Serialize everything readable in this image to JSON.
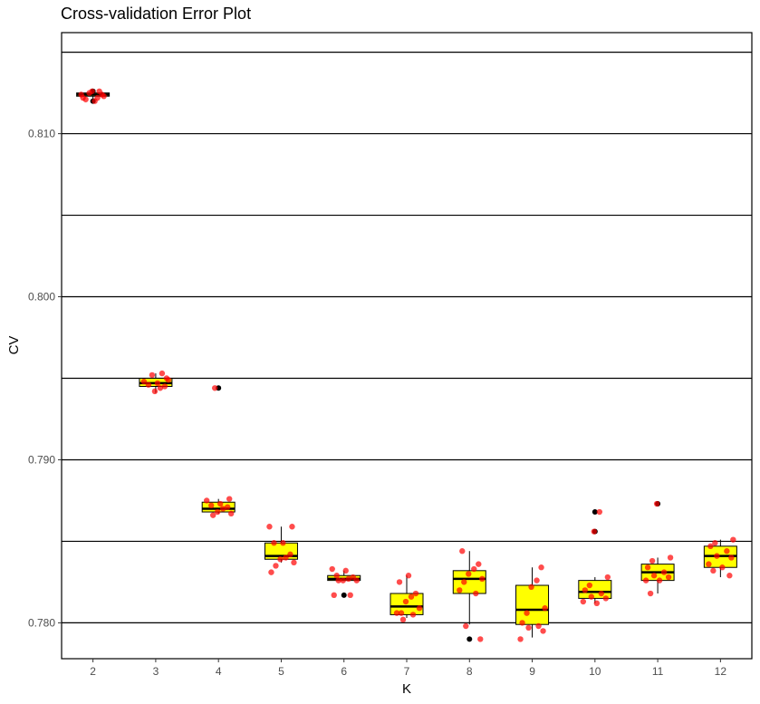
{
  "chart_data": {
    "type": "boxplot",
    "title": "Cross-validation Error Plot",
    "xlabel": "K",
    "ylabel": "CV",
    "categories": [
      "2",
      "3",
      "4",
      "5",
      "6",
      "7",
      "8",
      "9",
      "10",
      "11",
      "12"
    ],
    "ylim": [
      0.7778,
      0.8162
    ],
    "yticks": [
      0.78,
      0.79,
      0.8,
      0.81
    ],
    "ytick_labels": [
      "0.780",
      "0.790",
      "0.800",
      "0.810"
    ],
    "gridlines_y": [
      0.78,
      0.785,
      0.79,
      0.795,
      0.8,
      0.805,
      0.81,
      0.815
    ],
    "box_color": "#ffff00",
    "point_color": "#ff0000",
    "outlier_color": "#000000",
    "grid": true,
    "boxes": [
      {
        "k": "2",
        "min": 0.8121,
        "q1": 0.8123,
        "median": 0.8124,
        "q3": 0.8125,
        "max": 0.8126,
        "outliers": [
          0.8126,
          0.812
        ]
      },
      {
        "k": "3",
        "min": 0.7941,
        "q1": 0.7945,
        "median": 0.7947,
        "q3": 0.795,
        "max": 0.7953,
        "outliers": []
      },
      {
        "k": "4",
        "min": 0.7867,
        "q1": 0.7868,
        "median": 0.787,
        "q3": 0.7874,
        "max": 0.7876,
        "outliers": [
          0.7944
        ]
      },
      {
        "k": "5",
        "min": 0.7837,
        "q1": 0.7839,
        "median": 0.7841,
        "q3": 0.7849,
        "max": 0.7859,
        "outliers": []
      },
      {
        "k": "6",
        "min": 0.7826,
        "q1": 0.7826,
        "median": 0.7827,
        "q3": 0.7829,
        "max": 0.7832,
        "outliers": [
          0.7817
        ]
      },
      {
        "k": "7",
        "min": 0.7803,
        "q1": 0.7805,
        "median": 0.781,
        "q3": 0.7818,
        "max": 0.7829,
        "outliers": []
      },
      {
        "k": "8",
        "min": 0.7799,
        "q1": 0.7818,
        "median": 0.7827,
        "q3": 0.7832,
        "max": 0.7844,
        "outliers": [
          0.779
        ]
      },
      {
        "k": "9",
        "min": 0.7791,
        "q1": 0.7799,
        "median": 0.7808,
        "q3": 0.7823,
        "max": 0.7834,
        "outliers": []
      },
      {
        "k": "10",
        "min": 0.7812,
        "q1": 0.7815,
        "median": 0.7819,
        "q3": 0.7826,
        "max": 0.7828,
        "outliers": [
          0.7868,
          0.7856
        ]
      },
      {
        "k": "11",
        "min": 0.7818,
        "q1": 0.7826,
        "median": 0.7831,
        "q3": 0.7836,
        "max": 0.784,
        "outliers": [
          0.7873
        ]
      },
      {
        "k": "12",
        "min": 0.7828,
        "q1": 0.7834,
        "median": 0.7841,
        "q3": 0.7847,
        "max": 0.7851,
        "outliers": []
      }
    ],
    "points": [
      {
        "k": "2",
        "y": [
          0.8122,
          0.8126,
          0.8125,
          0.8123,
          0.8124,
          0.812,
          0.8121,
          0.8124,
          0.8122,
          0.8126
        ]
      },
      {
        "k": "3",
        "y": [
          0.7953,
          0.7952,
          0.795,
          0.7948,
          0.7947,
          0.7946,
          0.7945,
          0.7944,
          0.7942,
          0.7949
        ]
      },
      {
        "k": "4",
        "y": [
          0.7944,
          0.7876,
          0.7875,
          0.7873,
          0.7872,
          0.7871,
          0.787,
          0.7868,
          0.7867,
          0.7866
        ]
      },
      {
        "k": "5",
        "y": [
          0.7859,
          0.7859,
          0.7849,
          0.7849,
          0.7842,
          0.784,
          0.7839,
          0.7837,
          0.7835,
          0.7831
        ]
      },
      {
        "k": "6",
        "y": [
          0.7833,
          0.7832,
          0.7829,
          0.7828,
          0.7827,
          0.7826,
          0.7826,
          0.7826,
          0.7817,
          0.7817
        ]
      },
      {
        "k": "7",
        "y": [
          0.7829,
          0.7825,
          0.7818,
          0.7816,
          0.7813,
          0.7809,
          0.7806,
          0.7806,
          0.7805,
          0.7802
        ]
      },
      {
        "k": "8",
        "y": [
          0.7844,
          0.7836,
          0.7833,
          0.783,
          0.7827,
          0.7825,
          0.782,
          0.7818,
          0.7798,
          0.779
        ]
      },
      {
        "k": "9",
        "y": [
          0.7834,
          0.7826,
          0.7822,
          0.7809,
          0.7806,
          0.78,
          0.7798,
          0.7797,
          0.7795,
          0.779
        ]
      },
      {
        "k": "10",
        "y": [
          0.7868,
          0.7856,
          0.7828,
          0.7823,
          0.782,
          0.7818,
          0.7816,
          0.7815,
          0.7813,
          0.7812
        ]
      },
      {
        "k": "11",
        "y": [
          0.7873,
          0.784,
          0.7838,
          0.7834,
          0.7831,
          0.7829,
          0.7828,
          0.7826,
          0.7826,
          0.7818
        ]
      },
      {
        "k": "12",
        "y": [
          0.7851,
          0.7849,
          0.7847,
          0.7844,
          0.7841,
          0.784,
          0.7836,
          0.7834,
          0.7832,
          0.7829
        ]
      }
    ]
  }
}
